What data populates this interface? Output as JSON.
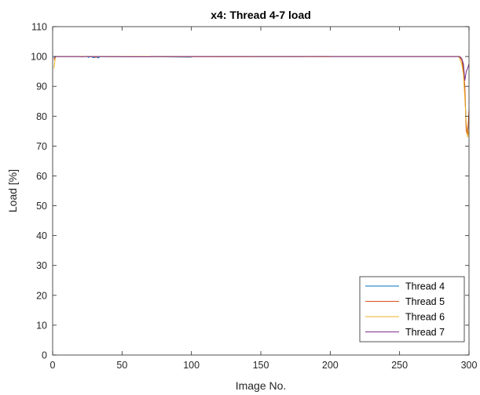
{
  "chart_data": {
    "type": "line",
    "title": "x4: Thread 4-7 load",
    "xlabel": "Image No.",
    "ylabel": "Load [%]",
    "xlim": [
      0,
      300
    ],
    "ylim": [
      0,
      110
    ],
    "xticks": [
      0,
      50,
      100,
      150,
      200,
      250,
      300
    ],
    "yticks": [
      0,
      10,
      20,
      30,
      40,
      50,
      60,
      70,
      80,
      90,
      100,
      110
    ],
    "grid": false,
    "legend_position": "bottom-right",
    "series": [
      {
        "name": "Thread 4",
        "color": "#0072bd",
        "points": [
          [
            1,
            99.5
          ],
          [
            2,
            100
          ],
          [
            25,
            100
          ],
          [
            26,
            99.7
          ],
          [
            27,
            100
          ],
          [
            30,
            99.6
          ],
          [
            31,
            100
          ],
          [
            33,
            99.5
          ],
          [
            34,
            100
          ],
          [
            60,
            99.9
          ],
          [
            61,
            100
          ],
          [
            100,
            99.8
          ],
          [
            101,
            100
          ],
          [
            180,
            99.9
          ],
          [
            181,
            100
          ],
          [
            292,
            100
          ],
          [
            294,
            99.3
          ],
          [
            295,
            99.0
          ],
          [
            296,
            96.5
          ],
          [
            297,
            88
          ],
          [
            298,
            76
          ],
          [
            299,
            74.5
          ],
          [
            300,
            80
          ]
        ]
      },
      {
        "name": "Thread 5",
        "color": "#d95319",
        "points": [
          [
            1,
            98.8
          ],
          [
            2,
            100
          ],
          [
            30,
            100
          ],
          [
            31,
            99.7
          ],
          [
            32,
            100
          ],
          [
            145,
            99.9
          ],
          [
            146,
            100
          ],
          [
            293,
            100
          ],
          [
            294,
            99.5
          ],
          [
            295,
            98.5
          ],
          [
            296,
            95
          ],
          [
            297,
            90
          ],
          [
            298,
            75
          ],
          [
            299,
            73.5
          ],
          [
            300,
            82
          ]
        ]
      },
      {
        "name": "Thread 6",
        "color": "#edb120",
        "points": [
          [
            1,
            96
          ],
          [
            2,
            100
          ],
          [
            40,
            100
          ],
          [
            41,
            99.8
          ],
          [
            42,
            100
          ],
          [
            200,
            99.9
          ],
          [
            201,
            100
          ],
          [
            292,
            100
          ],
          [
            293,
            99.8
          ],
          [
            294,
            98.5
          ],
          [
            295,
            97
          ],
          [
            296,
            94
          ],
          [
            297,
            86
          ],
          [
            298,
            78
          ],
          [
            299,
            73
          ],
          [
            300,
            75
          ]
        ]
      },
      {
        "name": "Thread 7",
        "color": "#7e2f8e",
        "points": [
          [
            1,
            99.3
          ],
          [
            2,
            100
          ],
          [
            20,
            100
          ],
          [
            21,
            99.8
          ],
          [
            22,
            100
          ],
          [
            70,
            99.9
          ],
          [
            71,
            100
          ],
          [
            293,
            100
          ],
          [
            294,
            99.8
          ],
          [
            295,
            99.0
          ],
          [
            296,
            97.5
          ],
          [
            297,
            92
          ],
          [
            298,
            95
          ],
          [
            299,
            96
          ],
          [
            300,
            97.5
          ]
        ]
      }
    ]
  }
}
